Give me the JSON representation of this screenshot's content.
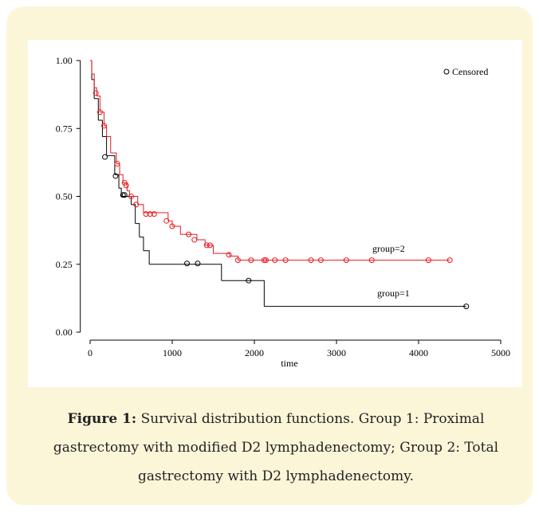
{
  "chart_data": {
    "type": "step",
    "xlabel": "time",
    "xlim": [
      -100,
      5000
    ],
    "xticks": [
      0,
      1000,
      2000,
      3000,
      4000,
      5000
    ],
    "ylim": [
      0,
      1
    ],
    "yticks": [
      {
        "value": 0,
        "label": "0.00"
      },
      {
        "value": 0.25,
        "label": "0.25"
      },
      {
        "value": 0.5,
        "label": "0.50"
      },
      {
        "value": 0.75,
        "label": "0.75"
      },
      {
        "value": 1,
        "label": "1.00"
      }
    ],
    "legend": {
      "label": "Censored",
      "position": "top-right"
    },
    "series": [
      {
        "name": "group=1",
        "color": "#000000",
        "x": [
          0,
          20,
          50,
          100,
          150,
          200,
          300,
          350,
          380,
          500,
          550,
          600,
          650,
          720,
          1600,
          2120,
          4580
        ],
        "values": [
          1.0,
          0.93,
          0.86,
          0.78,
          0.72,
          0.65,
          0.58,
          0.53,
          0.5,
          0.47,
          0.4,
          0.35,
          0.3,
          0.25,
          0.19,
          0.095,
          0.095
        ],
        "censored_x": [
          180,
          310,
          400,
          420,
          1180,
          1310,
          1930,
          4580
        ],
        "censored_values": [
          0.645,
          0.575,
          0.505,
          0.505,
          0.253,
          0.253,
          0.19,
          0.095
        ]
      },
      {
        "name": "group=2",
        "color": "#e8191f",
        "x": [
          0,
          20,
          50,
          80,
          120,
          170,
          200,
          250,
          320,
          360,
          400,
          450,
          480,
          580,
          650,
          950,
          1000,
          1100,
          1300,
          1400,
          1500,
          1700,
          1800,
          4380
        ],
        "values": [
          1.0,
          0.95,
          0.9,
          0.87,
          0.81,
          0.76,
          0.72,
          0.66,
          0.62,
          0.58,
          0.55,
          0.52,
          0.5,
          0.47,
          0.44,
          0.41,
          0.39,
          0.36,
          0.34,
          0.32,
          0.29,
          0.28,
          0.265,
          0.265
        ],
        "censored_x": [
          70,
          120,
          170,
          330,
          420,
          440,
          500,
          560,
          680,
          730,
          780,
          930,
          1000,
          1200,
          1270,
          1420,
          1460,
          1690,
          1800,
          1960,
          2120,
          2140,
          2250,
          2380,
          2690,
          2810,
          3120,
          3430,
          4120,
          4380
        ],
        "censored_values": [
          0.88,
          0.81,
          0.76,
          0.62,
          0.55,
          0.54,
          0.5,
          0.47,
          0.435,
          0.435,
          0.435,
          0.41,
          0.39,
          0.36,
          0.34,
          0.32,
          0.32,
          0.285,
          0.265,
          0.265,
          0.265,
          0.265,
          0.265,
          0.265,
          0.265,
          0.265,
          0.265,
          0.265,
          0.265,
          0.265
        ]
      }
    ]
  },
  "caption": {
    "label": "Figure 1:",
    "text": "Survival distribution functions. Group 1: Proximal gastrectomy with modified D2 lymphadenectomy; Group 2: Total gastrectomy with D2 lymphadenectomy."
  }
}
